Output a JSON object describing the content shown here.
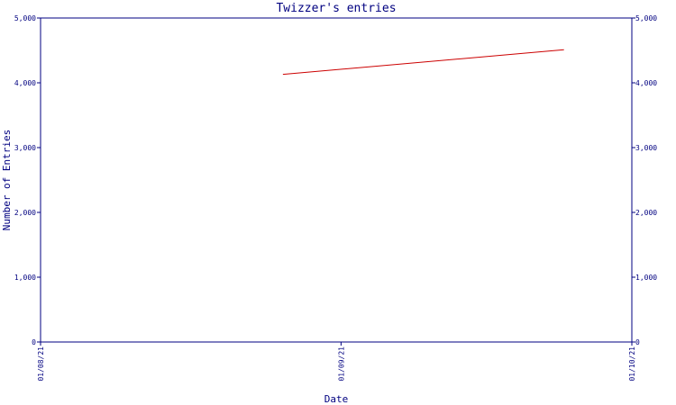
{
  "chart_data": {
    "type": "line",
    "title": "Twizzer's entries",
    "xlabel": "Date",
    "ylabel": "Number of Entries",
    "x_tick_labels": [
      "01/08/21",
      "01/09/21",
      "01/10/21"
    ],
    "y_tick_labels": [
      "0",
      "1,000",
      "2,000",
      "3,000",
      "4,000",
      "5,000"
    ],
    "y_ticks": [
      0,
      1000,
      2000,
      3000,
      4000,
      5000
    ],
    "ylim": [
      0,
      5000
    ],
    "xlim": [
      "2021-08-01",
      "2021-10-01"
    ],
    "x_ticks": [
      "2021-08-01",
      "2021-09-01",
      "2021-10-01"
    ],
    "grid": false,
    "series": [
      {
        "color": "#cc0000",
        "points": [
          {
            "x": "2021-08-26",
            "y": 4130
          },
          {
            "x": "2021-09-24",
            "y": 4510
          }
        ]
      }
    ]
  }
}
